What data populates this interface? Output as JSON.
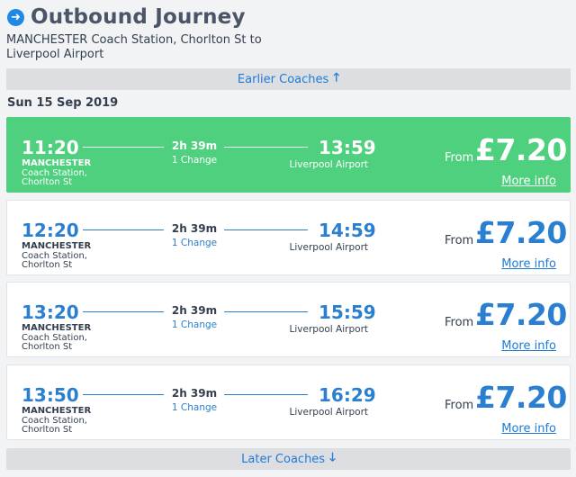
{
  "header": {
    "icon": "arrow-right-circle-icon",
    "title": "Outbound Journey"
  },
  "route": "MANCHESTER Coach Station, Chorlton St to Liverpool Airport",
  "earlier": {
    "label": "Earlier Coaches",
    "icon": "arrow-up-icon"
  },
  "date": "Sun 15 Sep 2019",
  "journeys": [
    {
      "departure": "11:20",
      "arrival": "13:59",
      "duration": "2h 39m",
      "changes": "1 Change",
      "origin_line1": "MANCHESTER",
      "origin_line2": "Coach Station,",
      "origin_line3": "Chorlton St",
      "destination": "Liverpool Airport",
      "from_label": "From",
      "price": "£7.20",
      "more_info": "More info",
      "selected": true
    },
    {
      "departure": "12:20",
      "arrival": "14:59",
      "duration": "2h 39m",
      "changes": "1 Change",
      "origin_line1": "MANCHESTER",
      "origin_line2": "Coach Station,",
      "origin_line3": "Chorlton St",
      "destination": "Liverpool Airport",
      "from_label": "From",
      "price": "£7.20",
      "more_info": "More info",
      "selected": false
    },
    {
      "departure": "13:20",
      "arrival": "15:59",
      "duration": "2h 39m",
      "changes": "1 Change",
      "origin_line1": "MANCHESTER",
      "origin_line2": "Coach Station,",
      "origin_line3": "Chorlton St",
      "destination": "Liverpool Airport",
      "from_label": "From",
      "price": "£7.20",
      "more_info": "More info",
      "selected": false
    },
    {
      "departure": "13:50",
      "arrival": "16:29",
      "duration": "2h 39m",
      "changes": "1 Change",
      "origin_line1": "MANCHESTER",
      "origin_line2": "Coach Station,",
      "origin_line3": "Chorlton St",
      "destination": "Liverpool Airport",
      "from_label": "From",
      "price": "£7.20",
      "more_info": "More info",
      "selected": false
    }
  ],
  "later": {
    "label": "Later Coaches",
    "icon": "arrow-down-icon"
  },
  "colors": {
    "accent": "#2b7fd0",
    "selected": "#4fd07e",
    "pager": "#dcdee1"
  }
}
